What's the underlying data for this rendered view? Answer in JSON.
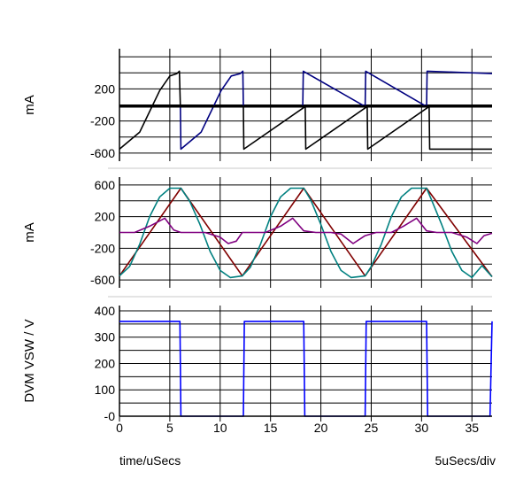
{
  "chart_data": [
    {
      "type": "line",
      "ylabel": "mA",
      "xlim": [
        0,
        37
      ],
      "ylim": [
        -700,
        700
      ],
      "y_ticks": [
        200,
        -200,
        -600
      ],
      "grid": true,
      "series": [
        {
          "color": "#000000",
          "x": [
            0,
            2,
            4,
            5,
            5.7,
            5.95,
            6.05,
            12.3,
            12.35,
            18.45,
            18.5,
            24.6,
            24.65,
            30.75,
            30.8,
            37
          ],
          "y": [
            -550,
            -340,
            180,
            360,
            390,
            420,
            -20,
            -20,
            -550,
            -20,
            -550,
            -20,
            -550,
            -20,
            -550,
            -550
          ]
        },
        {
          "color": "#000080",
          "x": [
            0,
            6.05,
            6.1,
            8.1,
            10.1,
            11.1,
            12.0,
            12.25,
            12.3,
            18.2,
            18.25,
            24.4,
            24.45,
            30.5,
            30.55,
            37
          ],
          "y": [
            -20,
            -20,
            -550,
            -340,
            180,
            360,
            390,
            420,
            -20,
            -20,
            420,
            -20,
            420,
            -20,
            420,
            390
          ]
        },
        {
          "color": "#000000",
          "x": [
            0,
            37
          ],
          "y": [
            -20,
            -20
          ]
        }
      ]
    },
    {
      "type": "line",
      "ylabel": "mA",
      "xlim": [
        0,
        37
      ],
      "ylim": [
        -700,
        700
      ],
      "y_ticks": [
        600,
        200,
        -200,
        -600
      ],
      "grid": true,
      "series": [
        {
          "color": "#800000",
          "x": [
            0,
            6.1,
            12.2,
            18.3,
            24.4,
            30.5,
            37
          ],
          "y": [
            -550,
            560,
            -550,
            560,
            -550,
            560,
            -560
          ]
        },
        {
          "color": "#008080",
          "x": [
            0,
            1,
            2,
            3,
            4,
            5,
            6.1,
            7,
            8,
            9,
            10,
            11,
            12.2,
            13,
            14,
            15,
            16,
            17,
            18.3,
            19,
            20,
            21,
            22,
            23,
            24.4,
            25,
            26,
            27,
            28,
            29,
            30.5,
            31,
            32,
            33,
            34,
            35,
            36,
            37
          ],
          "y": [
            -550,
            -430,
            -150,
            200,
            450,
            560,
            560,
            390,
            100,
            -240,
            -480,
            -570,
            -550,
            -440,
            -150,
            200,
            450,
            560,
            560,
            410,
            100,
            -240,
            -480,
            -570,
            -550,
            -430,
            -150,
            200,
            450,
            560,
            560,
            410,
            100,
            -240,
            -480,
            -570,
            -420,
            -560
          ]
        },
        {
          "color": "#800080",
          "x": [
            0,
            1.5,
            3,
            4.5,
            5.4,
            6.1,
            7,
            8.5,
            10,
            10.8,
            11.6,
            12.2,
            13,
            14.5,
            16,
            17.2,
            18.3,
            19.5,
            21,
            22,
            23.2,
            24.4,
            25.5,
            27,
            28.2,
            29.5,
            30.5,
            31.5,
            33,
            34.5,
            35.5,
            36.2,
            37
          ],
          "y": [
            0,
            0,
            80,
            180,
            30,
            0,
            0,
            0,
            -60,
            -140,
            -110,
            0,
            0,
            0,
            80,
            180,
            20,
            0,
            0,
            -20,
            -140,
            -40,
            0,
            0,
            80,
            180,
            20,
            0,
            0,
            -60,
            -140,
            -40,
            -10
          ]
        }
      ]
    },
    {
      "type": "line",
      "ylabel": "DVM VSW / V",
      "xlabel": "time/uSecs",
      "scale_label": "5uSecs/div",
      "xlim": [
        0,
        37
      ],
      "ylim": [
        0,
        420
      ],
      "x_ticks": [
        0,
        5,
        10,
        15,
        20,
        25,
        30,
        35
      ],
      "y_ticks": [
        400,
        300,
        200,
        100,
        0
      ],
      "y_tick_labels": [
        "400",
        "300",
        "200",
        "100",
        "-0"
      ],
      "grid": true,
      "series": [
        {
          "color": "#0000ff",
          "x": [
            0,
            6.0,
            6.1,
            12.3,
            12.4,
            18.3,
            18.4,
            24.4,
            24.5,
            30.5,
            30.6,
            36.8,
            37
          ],
          "y": [
            360,
            360,
            0,
            0,
            360,
            360,
            0,
            0,
            360,
            360,
            0,
            0,
            360
          ]
        }
      ]
    }
  ]
}
